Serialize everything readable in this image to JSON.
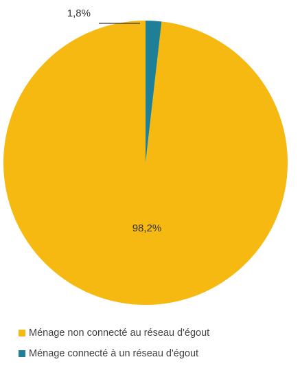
{
  "chart_data": {
    "type": "pie",
    "slices": [
      {
        "label": "Ménage non connecté au réseau d'égout",
        "value": 98.2,
        "display": "98,2%",
        "color": "#F6B912"
      },
      {
        "label": "Ménage connecté à un réseau d'égout",
        "value": 1.8,
        "display": "1,8%",
        "color": "#1E7F97"
      }
    ],
    "start_angle_deg": 0,
    "direction": "counterclockwise",
    "legend_position": "bottom"
  }
}
